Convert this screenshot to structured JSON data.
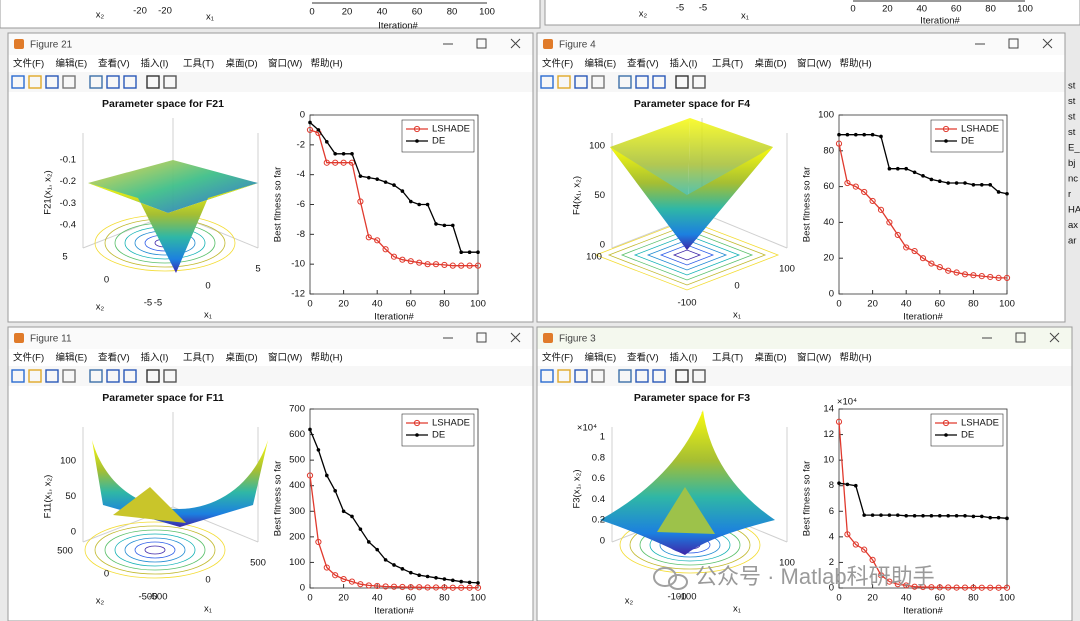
{
  "top_strip": {
    "left": {
      "texts": [
        "x₂",
        "-20",
        "-20",
        "x₁"
      ],
      "xticks": [
        "0",
        "20",
        "40",
        "60",
        "80",
        "100"
      ],
      "xlabel": "Iteration#"
    },
    "right": {
      "texts": [
        "x₂",
        "-5",
        "-5",
        "x₁"
      ],
      "xticks": [
        "0",
        "20",
        "40",
        "60",
        "80",
        "100"
      ],
      "xlabel": "Iteration#"
    }
  },
  "menu": [
    "文件(F)",
    "编辑(E)",
    "查看(V)",
    "插入(I)",
    "工具(T)",
    "桌面(D)",
    "窗口(W)",
    "帮助(H)"
  ],
  "windows": [
    {
      "title": "Figure 21",
      "surface": {
        "title": "Parameter space for F21",
        "zlabel": "F21(x₁, x₂)",
        "zticks": [
          "-0.1",
          "-0.2",
          "-0.3",
          "-0.4"
        ],
        "x2label": "x₂",
        "x2ticks": [
          "5",
          "0",
          "-5"
        ],
        "x1label": "x₁",
        "x1ticks": [
          "-5",
          "0",
          "5"
        ]
      },
      "convergence": {
        "type": "line",
        "xlabel": "Iteration#",
        "ylabel": "Best fitness so far",
        "x": [
          0,
          5,
          10,
          15,
          20,
          25,
          30,
          35,
          40,
          45,
          50,
          55,
          60,
          65,
          70,
          75,
          80,
          85,
          90,
          95,
          100
        ],
        "xlim": [
          0,
          100
        ],
        "xticks": [
          0,
          20,
          40,
          60,
          80,
          100
        ],
        "ylim": [
          -12,
          0
        ],
        "yticks": [
          -12,
          -10,
          -8,
          -6,
          -4,
          -2,
          0
        ],
        "legend": "northeast",
        "series": [
          {
            "name": "LSHADE",
            "color": "#e03a2e",
            "marker": "circle",
            "values": [
              -1,
              -1.2,
              -3.2,
              -3.2,
              -3.2,
              -3.2,
              -5.8,
              -8.2,
              -8.4,
              -9.0,
              -9.5,
              -9.7,
              -9.8,
              -9.9,
              -10,
              -10,
              -10.05,
              -10.1,
              -10.1,
              -10.1,
              -10.1
            ]
          },
          {
            "name": "DE",
            "color": "#000000",
            "marker": "dot",
            "values": [
              -0.5,
              -1,
              -1.8,
              -2.6,
              -2.6,
              -2.6,
              -4.1,
              -4.2,
              -4.3,
              -4.5,
              -4.7,
              -5.1,
              -5.8,
              -6,
              -6,
              -7.3,
              -7.4,
              -7.4,
              -9.2,
              -9.2,
              -9.2
            ]
          }
        ]
      }
    },
    {
      "title": "Figure 4",
      "surface": {
        "title": "Parameter space for F4",
        "zlabel": "F4(x₁, x₂)",
        "zticks": [
          "100",
          "50",
          "0"
        ],
        "x2ticks": [
          "100"
        ],
        "x1label": "x₁",
        "x1ticks": [
          "-100",
          "0",
          "100"
        ]
      },
      "convergence": {
        "type": "line",
        "xlabel": "Iteration#",
        "ylabel": "Best fitness so far",
        "x": [
          0,
          5,
          10,
          15,
          20,
          25,
          30,
          35,
          40,
          45,
          50,
          55,
          60,
          65,
          70,
          75,
          80,
          85,
          90,
          95,
          100
        ],
        "xlim": [
          0,
          100
        ],
        "xticks": [
          0,
          20,
          40,
          60,
          80,
          100
        ],
        "ylim": [
          0,
          100
        ],
        "yticks": [
          0,
          20,
          40,
          60,
          80,
          100
        ],
        "legend": "northeast",
        "series": [
          {
            "name": "LSHADE",
            "color": "#e03a2e",
            "marker": "circle",
            "values": [
              84,
              62,
              60,
              57,
              52,
              47,
              40,
              33,
              26,
              24,
              20,
              17,
              15,
              13,
              12,
              11,
              10.5,
              10,
              9.5,
              9,
              9
            ]
          },
          {
            "name": "DE",
            "color": "#000000",
            "marker": "dot",
            "values": [
              89,
              89,
              89,
              89,
              89,
              88,
              70,
              70,
              70,
              68,
              66,
              64,
              63,
              62,
              62,
              62,
              61,
              61,
              61,
              57,
              56
            ]
          }
        ]
      }
    },
    {
      "title": "Figure 11",
      "surface": {
        "title": "Parameter space for F11",
        "zlabel": "F11(x₁, x₂)",
        "zticks": [
          "100",
          "50",
          "0"
        ],
        "x2label": "x₂",
        "x2ticks": [
          "500",
          "0",
          "-500"
        ],
        "x1label": "x₁",
        "x1ticks": [
          "-500",
          "0",
          "500"
        ]
      },
      "convergence": {
        "type": "line",
        "xlabel": "Iteration#",
        "ylabel": "Best fitness so far",
        "x": [
          0,
          5,
          10,
          15,
          20,
          25,
          30,
          35,
          40,
          45,
          50,
          55,
          60,
          65,
          70,
          75,
          80,
          85,
          90,
          95,
          100
        ],
        "xlim": [
          0,
          100
        ],
        "xticks": [
          0,
          20,
          40,
          60,
          80,
          100
        ],
        "ylim": [
          0,
          700
        ],
        "yticks": [
          0,
          100,
          200,
          300,
          400,
          500,
          600,
          700
        ],
        "legend": "northeast",
        "series": [
          {
            "name": "LSHADE",
            "color": "#e03a2e",
            "marker": "circle",
            "values": [
              440,
              180,
              80,
              50,
              35,
              25,
              15,
              10,
              8,
              6,
              5,
              4,
              3,
              3,
              2,
              2,
              2,
              1,
              1,
              1,
              1
            ]
          },
          {
            "name": "DE",
            "color": "#000000",
            "marker": "dot",
            "values": [
              620,
              540,
              440,
              380,
              300,
              280,
              230,
              180,
              150,
              110,
              90,
              75,
              60,
              50,
              45,
              40,
              35,
              30,
              25,
              22,
              20
            ]
          }
        ]
      }
    },
    {
      "title": "Figure 3",
      "surface": {
        "title": "Parameter space for F3",
        "zlabel": "F3(x₁, x₂)",
        "zexponent": "×10⁴",
        "zticks": [
          "1",
          "0.8",
          "0.6",
          "0.4",
          "0.2",
          "0"
        ],
        "x2label": "x₂",
        "x2ticks": [
          "-100"
        ],
        "x1label": "x₁",
        "x1ticks": [
          "-100",
          "100"
        ]
      },
      "convergence": {
        "type": "line",
        "xlabel": "Iteration#",
        "ylabel": "Best fitness so far",
        "yexponent": "×10⁴",
        "x": [
          0,
          5,
          10,
          15,
          20,
          25,
          30,
          35,
          40,
          45,
          50,
          55,
          60,
          65,
          70,
          75,
          80,
          85,
          90,
          95,
          100
        ],
        "xlim": [
          0,
          100
        ],
        "xticks": [
          0,
          20,
          40,
          60,
          80,
          100
        ],
        "ylim": [
          0,
          140000
        ],
        "yticks": [
          {
            "value": 0,
            "label": "0"
          },
          {
            "value": 20000,
            "label": "2"
          },
          {
            "value": 40000,
            "label": "4"
          },
          {
            "value": 60000,
            "label": "6"
          },
          {
            "value": 80000,
            "label": "8"
          },
          {
            "value": 100000,
            "label": "10"
          },
          {
            "value": 120000,
            "label": "12"
          },
          {
            "value": 140000,
            "label": "14"
          }
        ],
        "legend": "northeast",
        "series": [
          {
            "name": "LSHADE",
            "color": "#e03a2e",
            "marker": "circle",
            "values": [
              130000,
              42000,
              34000,
              30000,
              22000,
              10000,
              5000,
              3000,
              2000,
              1000,
              800,
              600,
              500,
              400,
              300,
              300,
              200,
              200,
              200,
              200,
              200
            ]
          },
          {
            "name": "DE",
            "color": "#000000",
            "marker": "dot",
            "values": [
              82000,
              81000,
              80000,
              57000,
              57000,
              57000,
              57000,
              57000,
              56500,
              56500,
              56500,
              56500,
              56500,
              56500,
              56500,
              56500,
              56000,
              56000,
              55000,
              55000,
              54500
            ]
          }
        ]
      }
    }
  ],
  "side_fragments": [
    "st",
    "st",
    "st",
    "st",
    "E_c",
    "bj",
    "nc",
    "r",
    "HA",
    "ax",
    "ar"
  ],
  "watermark": "公众号 · Matlab科研助手"
}
